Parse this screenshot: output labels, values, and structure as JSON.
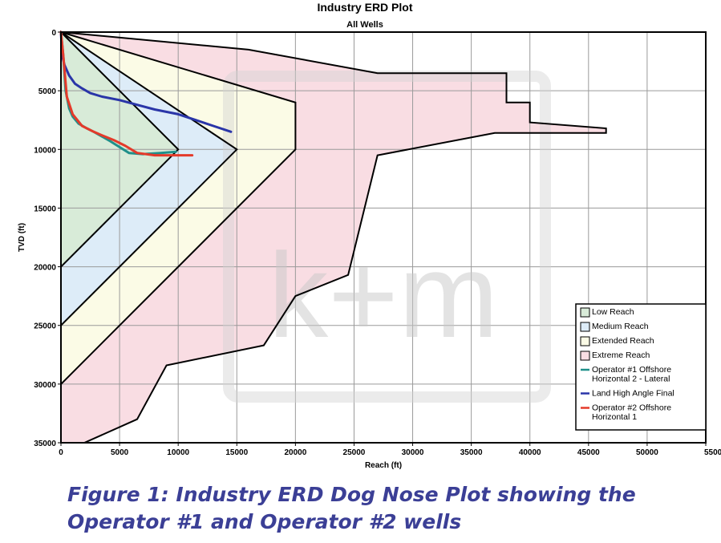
{
  "chart_data": {
    "type": "area",
    "title": "Industry ERD Plot",
    "subtitle": "All Wells",
    "xlabel": "Reach (ft)",
    "ylabel": "TVD (ft)",
    "xlim": [
      0,
      55000
    ],
    "ylim": [
      0,
      35000
    ],
    "y_inverted": true,
    "x_ticks": [
      0,
      5000,
      10000,
      15000,
      20000,
      25000,
      30000,
      35000,
      40000,
      45000,
      50000,
      55000
    ],
    "x_tick_labels": [
      "0",
      "5000",
      "10000",
      "15000",
      "20000",
      "25000",
      "30000",
      "35000",
      "40000",
      "45000",
      "50000",
      "55000"
    ],
    "y_ticks": [
      0,
      5000,
      10000,
      15000,
      20000,
      25000,
      30000,
      35000
    ],
    "y_tick_labels": [
      "0",
      "5000",
      "10000",
      "15000",
      "20000",
      "25000",
      "30000",
      "35000"
    ],
    "grid": true,
    "legend_position": "bottom-right",
    "regions": [
      {
        "name": "Extreme Reach",
        "color": "#f9dde3",
        "points": [
          [
            0,
            0
          ],
          [
            16000,
            1500
          ],
          [
            27000,
            3500
          ],
          [
            38000,
            3500
          ],
          [
            38000,
            6000
          ],
          [
            40000,
            6000
          ],
          [
            40000,
            7700
          ],
          [
            46500,
            8200
          ],
          [
            46500,
            8600
          ],
          [
            37000,
            8600
          ],
          [
            27000,
            10500
          ],
          [
            24500,
            20700
          ],
          [
            20000,
            22500
          ],
          [
            17300,
            26700
          ],
          [
            9000,
            28400
          ],
          [
            6500,
            33000
          ],
          [
            2000,
            35000
          ],
          [
            0,
            35000
          ]
        ]
      },
      {
        "name": "Extended Reach",
        "color": "#fbfbe6",
        "points": [
          [
            0,
            0
          ],
          [
            20000,
            6000
          ],
          [
            20000,
            10000
          ],
          [
            0,
            30000
          ]
        ]
      },
      {
        "name": "Medium Reach",
        "color": "#ddecf8",
        "points": [
          [
            0,
            0
          ],
          [
            15000,
            10000
          ],
          [
            0,
            25000
          ]
        ]
      },
      {
        "name": "Low Reach",
        "color": "#d8ebd8",
        "points": [
          [
            0,
            0
          ],
          [
            10000,
            10000
          ],
          [
            0,
            20000
          ]
        ]
      }
    ],
    "series": [
      {
        "name": "Operator #1 Offshore Horizontal 2 - Lateral",
        "color": "#20908a",
        "x": [
          0,
          200,
          400,
          700,
          1000,
          1500,
          2200,
          2800,
          3500,
          4200,
          5000,
          5800,
          7000,
          8500,
          9800
        ],
        "y": [
          0,
          2000,
          5000,
          6500,
          7200,
          7800,
          8200,
          8500,
          8900,
          9300,
          9800,
          10300,
          10400,
          10300,
          10200
        ]
      },
      {
        "name": "Land High Angle Final",
        "color": "#2a35a8",
        "x": [
          0,
          100,
          300,
          700,
          1200,
          1800,
          2500,
          3500,
          5000,
          6500,
          8000,
          10000,
          11500,
          13000,
          14500
        ],
        "y": [
          0,
          2000,
          2800,
          3700,
          4400,
          4800,
          5200,
          5500,
          5800,
          6200,
          6600,
          7000,
          7500,
          8000,
          8500
        ]
      },
      {
        "name": "Operator #2 Offshore Horizontal 1",
        "color": "#e43a2a",
        "x": [
          0,
          200,
          500,
          1000,
          1800,
          2800,
          3500,
          4500,
          5500,
          6500,
          8000,
          9800,
          11200
        ],
        "y": [
          0,
          2000,
          5500,
          7000,
          8000,
          8500,
          8800,
          9200,
          9700,
          10300,
          10500,
          10500,
          10500
        ]
      }
    ],
    "legend": [
      "Low Reach",
      "Medium Reach",
      "Extended Reach",
      "Extreme Reach",
      "Operator #1 Offshore Horizontal 2 - Lateral",
      "Land High Angle Final",
      "Operator #2 Offshore Horizontal 1"
    ],
    "watermark": "k+m"
  },
  "caption": {
    "line1": "Figure 1: Industry ERD Dog Nose Plot showing the",
    "line2": "Operator #1 and Operator #2 wells"
  }
}
